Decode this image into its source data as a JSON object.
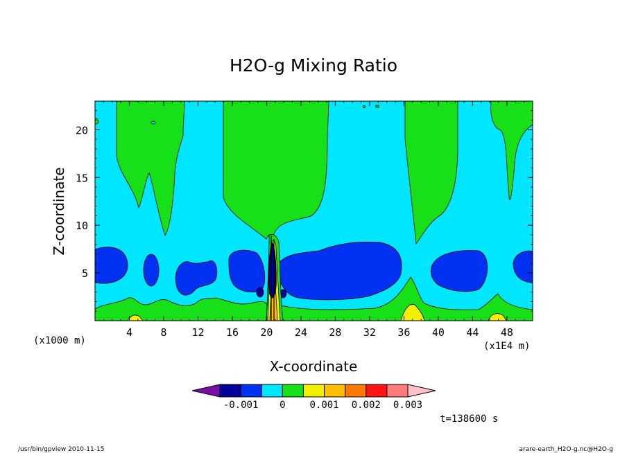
{
  "chart_data": {
    "type": "heatmap",
    "title": "H2O-g Mixing Ratio",
    "xlabel": "X-coordinate",
    "ylabel": "Z-coordinate",
    "x_unit": "(x1000 m)",
    "x_scale_note": "(x1E4 m)",
    "xlim": [
      0,
      51
    ],
    "ylim": [
      0,
      23
    ],
    "x_ticks": [
      4,
      8,
      12,
      16,
      20,
      24,
      28,
      32,
      36,
      40,
      44,
      48
    ],
    "x_tick_labels": [
      "4",
      "8",
      "12",
      "16",
      "20",
      "24",
      "28",
      "32",
      "36",
      "40",
      "44",
      "48"
    ],
    "y_ticks": [
      5,
      10,
      15,
      20
    ],
    "y_tick_labels": [
      "5",
      "10",
      "15",
      "20"
    ],
    "colorbar": {
      "colors": [
        "#7a0fa8",
        "#00009a",
        "#0030f0",
        "#00e6ff",
        "#18e018",
        "#f0f000",
        "#ffbe00",
        "#ff7800",
        "#ff1414",
        "#ff7c7c",
        "#ffc0c8"
      ],
      "labels": [
        "-0.001",
        "0",
        "0.001",
        "0.002",
        "0.003"
      ],
      "label_positions": [
        -0.001,
        0,
        0.001,
        0.002,
        0.003
      ]
    },
    "regions": {
      "background": "#00e6ff",
      "upper_green_plumes": "#18e018",
      "mid_blue_pockets": "#0030f0",
      "low_green_band": "#18e018",
      "surface_yellow": "#f0f000",
      "core": "#00009a"
    },
    "time_label": "t=138600 s"
  },
  "footer": {
    "left": "/usr/bin/gpview  2010-11-15",
    "right": "arare-earth_H2O-g.nc@H2O-g"
  }
}
